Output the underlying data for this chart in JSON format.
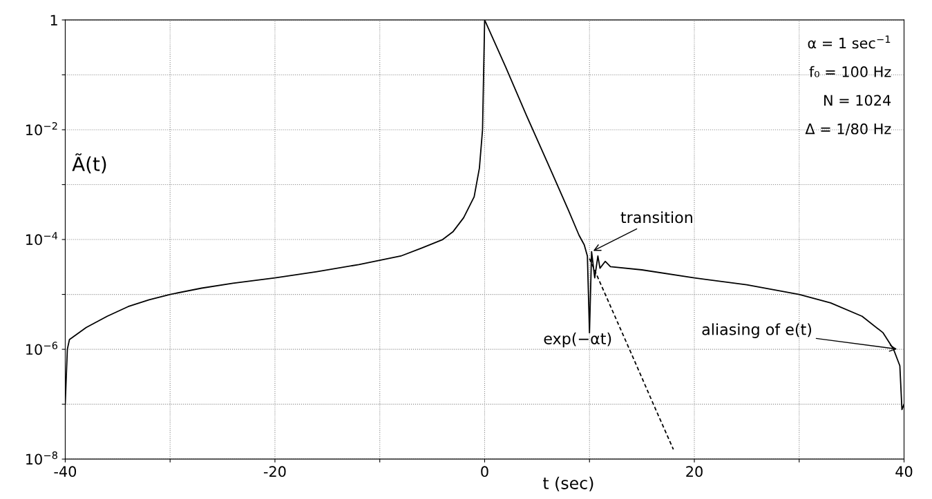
{
  "chart_data": {
    "type": "line",
    "xlabel": "t (sec)",
    "ylabel": "Ã(t)",
    "log": "y",
    "grid": true,
    "xlim": [
      -40,
      40
    ],
    "xticks": [
      -40,
      {
        "value": -30,
        "label": null
      },
      -20,
      {
        "value": -10,
        "label": null
      },
      0,
      {
        "value": 10,
        "label": null
      },
      20,
      {
        "value": 30,
        "label": null
      },
      40
    ],
    "ylim": [
      1e-08,
      1
    ],
    "yticks": [
      {
        "value": 1e-08,
        "label": "10$^{−8}$"
      },
      {
        "value": 1e-07,
        "label": null
      },
      {
        "value": 1e-06,
        "label": "10$^{−6}$"
      },
      {
        "value": 1e-05,
        "label": null
      },
      {
        "value": 0.0001,
        "label": "10$^{−4}$"
      },
      {
        "value": 0.001,
        "label": null
      },
      {
        "value": 0.01,
        "label": "10$^{−2}$"
      },
      {
        "value": 0.1,
        "label": null
      },
      {
        "value": 1,
        "label": "1"
      }
    ],
    "series": [
      {
        "color": "#000000",
        "line_style": "solid",
        "x": [
          -40,
          -39.8,
          -39.6,
          -38,
          -36,
          -34,
          -32,
          -30,
          -27,
          -24,
          -20,
          -16,
          -12,
          -8,
          -6,
          -4,
          -3,
          -2,
          -1,
          -0.5,
          -0.2,
          0,
          2,
          4,
          6,
          8,
          9,
          9.5,
          9.8,
          10,
          10.2,
          10.5,
          10.8,
          11,
          11.5,
          12,
          15,
          20,
          25,
          30,
          33,
          36,
          38,
          39,
          39.6,
          39.8,
          40
        ],
        "values": [
          1e-07,
          1e-06,
          1.5e-06,
          2.5e-06,
          4e-06,
          6e-06,
          8e-06,
          1e-05,
          1.3e-05,
          1.6e-05,
          2e-05,
          2.6e-05,
          3.5e-05,
          5e-05,
          7e-05,
          0.0001,
          0.00014,
          0.00025,
          0.0006,
          0.002,
          0.01,
          1,
          0.14,
          0.018,
          0.0025,
          0.00034,
          0.00012,
          8e-05,
          5e-05,
          2e-06,
          6e-05,
          2e-05,
          5e-05,
          3e-05,
          4e-05,
          3.2e-05,
          2.8e-05,
          2e-05,
          1.5e-05,
          1e-05,
          7e-06,
          4e-06,
          2e-06,
          1e-06,
          5e-07,
          8e-08,
          1e-07
        ]
      },
      {
        "color": "#000000",
        "line_style": "dashed",
        "x": [
          10,
          12,
          14,
          16,
          18
        ],
        "values": [
          4.5e-05,
          6.1e-06,
          8.3e-07,
          1.1e-07,
          1.5e-08
        ]
      }
    ],
    "annotations": [
      "α = 1 sec$^{−1}$",
      "f₀ = 100 Hz",
      "N = 1024",
      "Δ = 1/80 Hz",
      {
        "text": "transition",
        "x": 10.2,
        "y": 6e-05
      },
      {
        "text": "exp(−αt)",
        "x": 14,
        "y": 8.3e-07
      },
      {
        "text": "aliasing of e(t)",
        "x": 39.5,
        "y": 1e-06
      }
    ]
  }
}
